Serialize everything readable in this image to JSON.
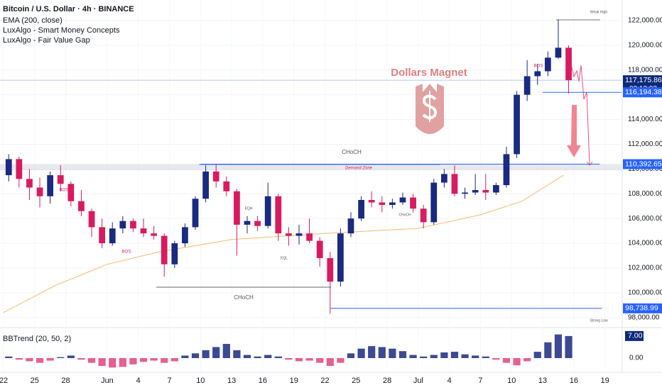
{
  "chart_data": {
    "type": "candlestick",
    "title": "Bitcoin / U.S. Dollar · 4h · BINANCE",
    "indicators": [
      "EMA (200, close)",
      "LuxAlgo - Smart Money Concepts",
      "LuxAlgo - Fair Value Gap"
    ],
    "watermark": "Dollars Magnet",
    "x": [
      0.5,
      1.5,
      2.5,
      3.5,
      4.5,
      5.5,
      6.5,
      7.5,
      8.5,
      9.5,
      10.5,
      11.5,
      12.5,
      13.5,
      14.5,
      15.5,
      16.5,
      17.5,
      18.5,
      19.5,
      20.5,
      21.5,
      22.5,
      23.5,
      24.5,
      25.5,
      26.5,
      27.5,
      28.5,
      29.5,
      30.5,
      31.5,
      32.5,
      33.5,
      34.5,
      35.5,
      36.5,
      37.5,
      38.5,
      39.5,
      40.5,
      41.5,
      42.5,
      43.5,
      44.5,
      45.5,
      46.5,
      47.5,
      48.5,
      49.5,
      50.5,
      51.5,
      52.5,
      53.5,
      54.5
    ],
    "open": [
      109500,
      110800,
      109200,
      108500,
      107800,
      109500,
      108800,
      107400,
      106600,
      105300,
      104000,
      105200,
      105800,
      105200,
      104800,
      104600,
      102300,
      104000,
      105300,
      107600,
      109800,
      109000,
      108200,
      105500,
      105800,
      105400,
      107800,
      104800,
      104600,
      104800,
      104200,
      102800,
      100900,
      104800,
      106000,
      107500,
      107300,
      107100,
      107300,
      107700,
      106800,
      105700,
      108900,
      109600,
      108000,
      108100,
      108300,
      108100,
      108700,
      111200,
      116000,
      117500,
      117900,
      119000,
      119800
    ],
    "high": [
      111200,
      111000,
      110000,
      109300,
      109800,
      110300,
      109000,
      108300,
      106800,
      106000,
      105700,
      106200,
      106000,
      106000,
      105400,
      104800,
      104200,
      105600,
      107800,
      110300,
      110400,
      109400,
      108400,
      106200,
      106200,
      108900,
      108000,
      105300,
      105500,
      106000,
      104500,
      103300,
      105200,
      106500,
      107800,
      108200,
      107800,
      107600,
      108100,
      108000,
      107100,
      109200,
      110000,
      110300,
      108500,
      109600,
      109600,
      108900,
      111800,
      116300,
      118800,
      118500,
      119500,
      122100,
      120000
    ],
    "low": [
      109000,
      108500,
      107500,
      106900,
      107200,
      108200,
      107000,
      106200,
      104500,
      103600,
      103800,
      104800,
      104900,
      104500,
      104300,
      101300,
      102000,
      103700,
      105100,
      107300,
      108500,
      107800,
      103000,
      104800,
      105000,
      105200,
      104200,
      103800,
      103900,
      104000,
      102100,
      98300,
      100500,
      104500,
      105800,
      106900,
      106500,
      106800,
      107100,
      106500,
      105200,
      105500,
      108500,
      107800,
      107600,
      107900,
      107500,
      107900,
      108500,
      110900,
      115500,
      116800,
      117500,
      118900,
      116100
    ],
    "close": [
      110800,
      109200,
      108500,
      107800,
      109500,
      108800,
      107400,
      106600,
      105300,
      104000,
      105200,
      105800,
      105200,
      104800,
      104600,
      102300,
      104000,
      105300,
      107600,
      109800,
      109000,
      108200,
      105500,
      105800,
      105400,
      107800,
      104800,
      104600,
      104800,
      104200,
      102800,
      100900,
      104800,
      106000,
      107500,
      107300,
      107100,
      107300,
      107700,
      106800,
      105700,
      108900,
      109600,
      108000,
      108100,
      108300,
      108100,
      108700,
      111200,
      116000,
      117500,
      117900,
      119000,
      119800,
      117175.86
    ],
    "up_color": "#1a2a80",
    "down_color": "#d81b60",
    "ema": {
      "name": "EMA (200, close)",
      "color": "#f5b971",
      "x": [
        0,
        5,
        10,
        15,
        22,
        31,
        40,
        46,
        50,
        54
      ],
      "values": [
        98400,
        100600,
        102300,
        103300,
        104300,
        104800,
        105200,
        106300,
        107400,
        109500
      ]
    },
    "xlim": [
      -0.34,
      59.6
    ],
    "xticks": [
      {
        "value": 0,
        "label": "22"
      },
      {
        "value": 3,
        "label": "25"
      },
      {
        "value": 6,
        "label": "28"
      },
      {
        "value": 10,
        "label": "Jun"
      },
      {
        "value": 13,
        "label": "4"
      },
      {
        "value": 16,
        "label": "7"
      },
      {
        "value": 19,
        "label": "10"
      },
      {
        "value": 22,
        "label": "13"
      },
      {
        "value": 25,
        "label": "16"
      },
      {
        "value": 28,
        "label": "19"
      },
      {
        "value": 31,
        "label": "22"
      },
      {
        "value": 34,
        "label": "25"
      },
      {
        "value": 37,
        "label": "28"
      },
      {
        "value": 40,
        "label": "Jul"
      },
      {
        "value": 43,
        "label": "4"
      },
      {
        "value": 46,
        "label": "7"
      },
      {
        "value": 49,
        "label": "10"
      },
      {
        "value": 52,
        "label": "13"
      },
      {
        "value": 55,
        "label": "16"
      },
      {
        "value": 58,
        "label": "19"
      }
    ],
    "ylim": [
      97300,
      123200
    ],
    "yticks": [
      {
        "value": 98000,
        "label": "98,000.00"
      },
      {
        "value": 100000,
        "label": "100,000.00"
      },
      {
        "value": 102000,
        "label": "102,000.00"
      },
      {
        "value": 104000,
        "label": "104,000.00"
      },
      {
        "value": 106000,
        "label": "106,000.00"
      },
      {
        "value": 108000,
        "label": "108,000.00"
      },
      {
        "value": 110000,
        "label": "110,000.00"
      },
      {
        "value": 112000,
        "label": "112,000.00"
      },
      {
        "value": 114000,
        "label": "114,000.00"
      },
      {
        "value": 116000,
        "label": "116,000.00"
      },
      {
        "value": 118000,
        "label": "118,000.00"
      },
      {
        "value": 120000,
        "label": "120,000.00"
      },
      {
        "value": 122000,
        "label": "122,000.00"
      }
    ],
    "levels": [
      {
        "value": 117175.86,
        "label": "117,175.86",
        "countdown": "02:13:03",
        "color": "#0d2a7a"
      },
      {
        "value": 116194.38,
        "label": "116,194.38",
        "color": "#2962ff"
      },
      {
        "value": 110392.65,
        "label": "110,392.65",
        "color": "#2962ff"
      },
      {
        "value": 98738.99,
        "label": "98,738.99",
        "color": "#2962ff"
      }
    ],
    "demand_zone": {
      "label": "Demand Zone",
      "low": 109900,
      "high": 110400
    },
    "annotations": [
      "CHoCH",
      "CHoCH",
      "BOS",
      "BOS",
      "BOS",
      "EQH",
      "EQL",
      "CHoCH",
      "Weak High",
      "Strong Low"
    ],
    "bbtrend": {
      "name": "BBTrend (20, 50, 2)",
      "pos_color": "#1a2a80",
      "neg_color": "#e0457b",
      "values": [
        0.5,
        -0.5,
        -1,
        -1.5,
        -0.8,
        0.3,
        0.8,
        -0.5,
        -1.5,
        -2.5,
        -3,
        -2.8,
        -2,
        -1.2,
        -0.8,
        -1.5,
        -1,
        0.8,
        1.5,
        2.5,
        3.5,
        4.5,
        2.5,
        1,
        0.5,
        1,
        0.5,
        -0.5,
        -1,
        -0.8,
        -1.5,
        -2.5,
        -1.5,
        1.5,
        3,
        3.8,
        3.5,
        3,
        2.2,
        1,
        0.5,
        1,
        1.8,
        2,
        1.2,
        0.8,
        0.5,
        -0.5,
        -1.5,
        -2.3,
        -1,
        2,
        5,
        7.5,
        7
      ],
      "ylim": [
        -4.5,
        9
      ],
      "yticks": [
        {
          "value": 0,
          "label": "0.00"
        }
      ],
      "last": {
        "value": 7,
        "label": "7.00"
      }
    }
  }
}
